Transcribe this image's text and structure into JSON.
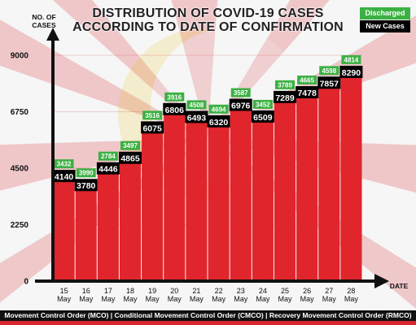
{
  "title_line1": "DISTRIBUTION OF COVID-19 CASES",
  "title_line2": "ACCORDING TO DATE OF CONFIRMATION",
  "footer": "Movement Control Order (MCO) | Conditional Movement Control Order (CMCO) | Recovery Movement Control Order (RMCO)",
  "colors": {
    "bar": "#e0252c",
    "discharged": "#3cb043",
    "new_cases": "#000000",
    "axis": "#111111"
  },
  "chart_data": {
    "type": "bar",
    "title": "DISTRIBUTION OF COVID-19 CASES ACCORDING TO DATE OF CONFIRMATION",
    "ylabel": "NO. OF CASES",
    "xlabel": "DATE",
    "ylim": [
      0,
      9000
    ],
    "yticks": [
      0,
      2250,
      4500,
      6750,
      9000
    ],
    "grid": true,
    "legend_position": "top-right",
    "categories": [
      "15 May",
      "16 May",
      "17 May",
      "18 May",
      "19 May",
      "20 May",
      "21 May",
      "22 May",
      "23 May",
      "24 May",
      "25 May",
      "26 May",
      "27 May",
      "28 May"
    ],
    "series": [
      {
        "name": "New Cases",
        "values": [
          4140,
          3780,
          4446,
          4865,
          6075,
          6806,
          6493,
          6320,
          6976,
          6509,
          7289,
          7478,
          7857,
          8290
        ]
      },
      {
        "name": "Discharged",
        "values": [
          3432,
          3990,
          2784,
          3497,
          3516,
          3916,
          4508,
          4694,
          3587,
          3452,
          3789,
          4665,
          4598,
          4814
        ]
      }
    ]
  }
}
